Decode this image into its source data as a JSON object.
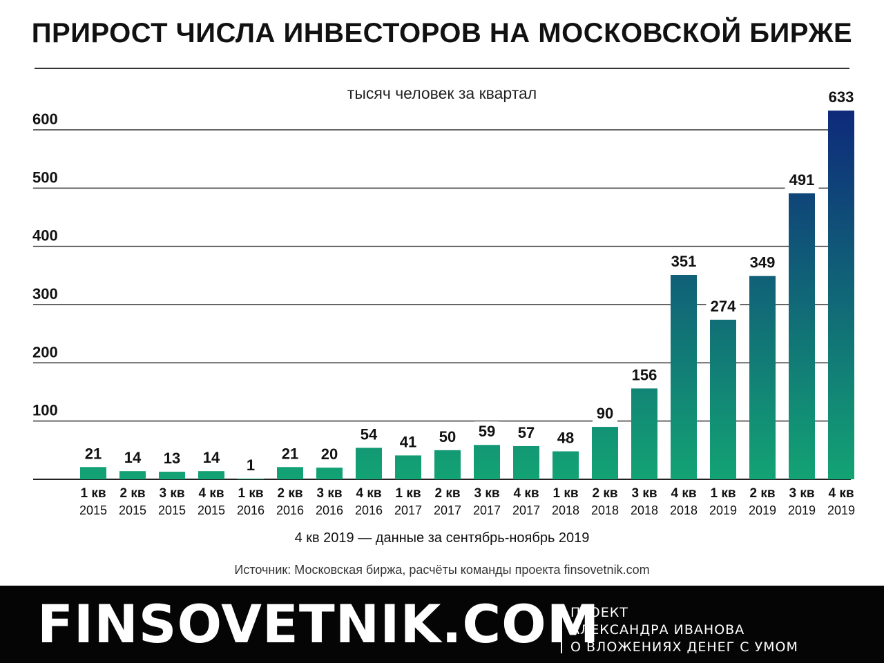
{
  "header": {
    "title": "ПРИРОСТ ЧИСЛА ИНВЕСТОРОВ НА МОСКОВСКОЙ БИРЖЕ",
    "unit_label": "тысяч человек за квартал"
  },
  "chart_data": {
    "type": "bar",
    "title": "ПРИРОСТ ЧИСЛА ИНВЕСТОРОВ НА МОСКОВСКОЙ БИРЖЕ",
    "ylabel": "тысяч человек за квартал",
    "xlabel": "",
    "ylim": [
      0,
      600
    ],
    "yticks": [
      100,
      200,
      300,
      400,
      500,
      600
    ],
    "grid": true,
    "categories": [
      [
        "1 кв",
        "2015"
      ],
      [
        "2 кв",
        "2015"
      ],
      [
        "3 кв",
        "2015"
      ],
      [
        "4 кв",
        "2015"
      ],
      [
        "1 кв",
        "2016"
      ],
      [
        "2 кв",
        "2016"
      ],
      [
        "3 кв",
        "2016"
      ],
      [
        "4 кв",
        "2016"
      ],
      [
        "1 кв",
        "2017"
      ],
      [
        "2 кв",
        "2017"
      ],
      [
        "3 кв",
        "2017"
      ],
      [
        "4 кв",
        "2017"
      ],
      [
        "1 кв",
        "2018"
      ],
      [
        "2 кв",
        "2018"
      ],
      [
        "3 кв",
        "2018"
      ],
      [
        "4 кв",
        "2018"
      ],
      [
        "1 кв",
        "2019"
      ],
      [
        "2 кв",
        "2019"
      ],
      [
        "3 кв",
        "2019"
      ],
      [
        "4 кв",
        "2019"
      ]
    ],
    "values": [
      21,
      14,
      13,
      14,
      1,
      21,
      20,
      54,
      41,
      50,
      59,
      57,
      48,
      90,
      156,
      351,
      274,
      349,
      491,
      633
    ],
    "colors": {
      "low": "#13a374",
      "high": "#0e2a7a"
    }
  },
  "notes": {
    "q4_note": "4 кв 2019 — данные за сентябрь-ноябрь 2019",
    "source": "Источник: Московская биржа, расчёты команды проекта finsovetnik.com"
  },
  "footer": {
    "brand": "FINSOVETNIK.COM",
    "tagline_lines": [
      "ПРОЕКТ",
      "АЛЕКСАНДРА ИВАНОВА",
      "О ВЛОЖЕНИЯХ ДЕНЕГ С УМОМ"
    ]
  }
}
